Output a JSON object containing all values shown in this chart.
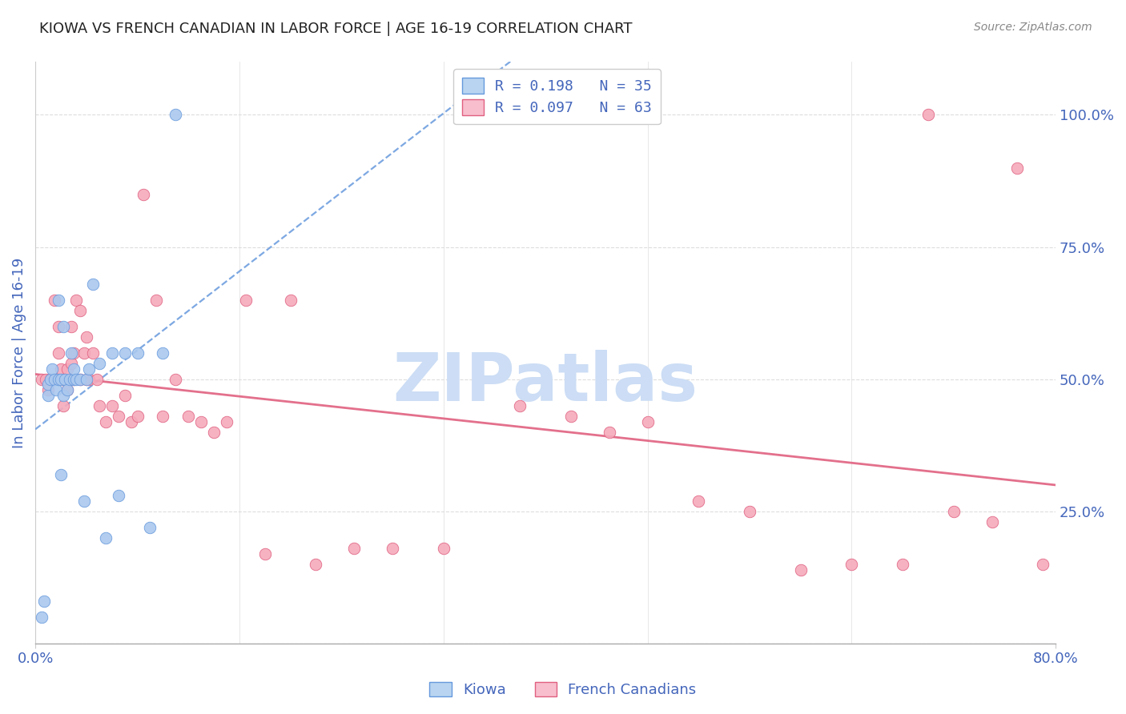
{
  "title": "KIOWA VS FRENCH CANADIAN IN LABOR FORCE | AGE 16-19 CORRELATION CHART",
  "source": "Source: ZipAtlas.com",
  "ylabel": "In Labor Force | Age 16-19",
  "xlim": [
    0.0,
    0.8
  ],
  "ylim": [
    0.0,
    1.1
  ],
  "ytick_positions": [
    0.0,
    0.25,
    0.5,
    0.75,
    1.0
  ],
  "ytick_labels_right": [
    "",
    "25.0%",
    "50.0%",
    "75.0%",
    "100.0%"
  ],
  "kiowa_R": 0.198,
  "kiowa_N": 35,
  "french_R": 0.097,
  "french_N": 63,
  "kiowa_color": "#aac8ee",
  "french_color": "#f5aabb",
  "kiowa_line_color": "#6699dd",
  "french_line_color": "#e06080",
  "legend_box_color_kiowa": "#b8d4f0",
  "legend_box_color_french": "#f8bece",
  "watermark": "ZIPatlas",
  "watermark_color": "#ccddf5",
  "grid_color": "#dddddd",
  "axis_label_color": "#4466bb",
  "kiowa_x": [
    0.005,
    0.007,
    0.01,
    0.01,
    0.012,
    0.013,
    0.015,
    0.016,
    0.018,
    0.018,
    0.02,
    0.02,
    0.022,
    0.022,
    0.023,
    0.025,
    0.027,
    0.028,
    0.03,
    0.03,
    0.032,
    0.035,
    0.038,
    0.04,
    0.042,
    0.045,
    0.05,
    0.055,
    0.06,
    0.065,
    0.07,
    0.08,
    0.09,
    0.1,
    0.11
  ],
  "kiowa_y": [
    0.05,
    0.08,
    0.47,
    0.49,
    0.5,
    0.52,
    0.5,
    0.48,
    0.5,
    0.65,
    0.32,
    0.5,
    0.47,
    0.6,
    0.5,
    0.48,
    0.5,
    0.55,
    0.5,
    0.52,
    0.5,
    0.5,
    0.27,
    0.5,
    0.52,
    0.68,
    0.53,
    0.2,
    0.55,
    0.28,
    0.55,
    0.55,
    0.22,
    0.55,
    1.0
  ],
  "french_x": [
    0.005,
    0.008,
    0.01,
    0.012,
    0.015,
    0.015,
    0.018,
    0.018,
    0.02,
    0.02,
    0.022,
    0.022,
    0.025,
    0.025,
    0.028,
    0.028,
    0.03,
    0.03,
    0.032,
    0.035,
    0.035,
    0.038,
    0.04,
    0.04,
    0.042,
    0.045,
    0.048,
    0.05,
    0.055,
    0.06,
    0.065,
    0.07,
    0.075,
    0.08,
    0.085,
    0.095,
    0.1,
    0.11,
    0.12,
    0.13,
    0.14,
    0.15,
    0.165,
    0.18,
    0.2,
    0.22,
    0.25,
    0.28,
    0.32,
    0.38,
    0.42,
    0.45,
    0.48,
    0.52,
    0.56,
    0.6,
    0.64,
    0.68,
    0.7,
    0.72,
    0.75,
    0.77,
    0.79
  ],
  "french_y": [
    0.5,
    0.5,
    0.48,
    0.5,
    0.65,
    0.5,
    0.55,
    0.6,
    0.5,
    0.52,
    0.45,
    0.5,
    0.48,
    0.52,
    0.53,
    0.6,
    0.55,
    0.5,
    0.65,
    0.63,
    0.5,
    0.55,
    0.5,
    0.58,
    0.5,
    0.55,
    0.5,
    0.45,
    0.42,
    0.45,
    0.43,
    0.47,
    0.42,
    0.43,
    0.85,
    0.65,
    0.43,
    0.5,
    0.43,
    0.42,
    0.4,
    0.42,
    0.65,
    0.17,
    0.65,
    0.15,
    0.18,
    0.18,
    0.18,
    0.45,
    0.43,
    0.4,
    0.42,
    0.27,
    0.25,
    0.14,
    0.15,
    0.15,
    1.0,
    0.25,
    0.23,
    0.9,
    0.15
  ]
}
